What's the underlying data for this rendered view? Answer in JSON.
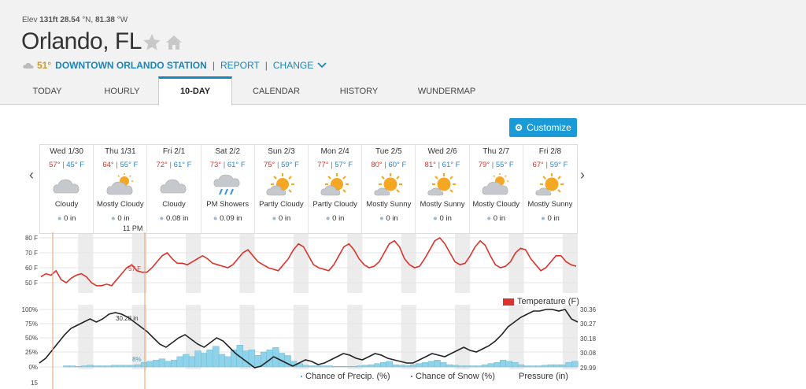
{
  "header": {
    "elev_label": "Elev",
    "elev_value": "131ft",
    "lat": "28.54",
    "lat_dir": "°N,",
    "lon": "81.38",
    "lon_dir": "°W",
    "city": "Orlando, FL",
    "current_temp": "51°",
    "station": "DOWNTOWN ORLANDO STATION",
    "report": "REPORT",
    "change": "CHANGE"
  },
  "tabs": [
    {
      "label": "TODAY"
    },
    {
      "label": "HOURLY"
    },
    {
      "label": "10-DAY"
    },
    {
      "label": "CALENDAR"
    },
    {
      "label": "HISTORY"
    },
    {
      "label": "WUNDERMAP"
    }
  ],
  "active_tab": "10-DAY",
  "customize_label": "Customize",
  "days": [
    {
      "name": "Wed 1/30",
      "hi": "57°",
      "lo": "45° F",
      "icon": "cloudy",
      "cond": "Cloudy",
      "precip": "0 in"
    },
    {
      "name": "Thu 1/31",
      "hi": "64°",
      "lo": "55° F",
      "icon": "mostly-cloudy",
      "cond": "Mostly Cloudy",
      "precip": "0 in"
    },
    {
      "name": "Fri 2/1",
      "hi": "72°",
      "lo": "61° F",
      "icon": "cloudy",
      "cond": "Cloudy",
      "precip": "0.08 in"
    },
    {
      "name": "Sat 2/2",
      "hi": "73°",
      "lo": "61° F",
      "icon": "showers",
      "cond": "PM Showers",
      "precip": "0.09 in"
    },
    {
      "name": "Sun 2/3",
      "hi": "75°",
      "lo": "59° F",
      "icon": "partly-cloudy",
      "cond": "Partly Cloudy",
      "precip": "0 in"
    },
    {
      "name": "Mon 2/4",
      "hi": "77°",
      "lo": "57° F",
      "icon": "partly-cloudy",
      "cond": "Partly Cloudy",
      "precip": "0 in"
    },
    {
      "name": "Tue 2/5",
      "hi": "80°",
      "lo": "60° F",
      "icon": "mostly-sunny",
      "cond": "Mostly Sunny",
      "precip": "0 in"
    },
    {
      "name": "Wed 2/6",
      "hi": "81°",
      "lo": "61° F",
      "icon": "mostly-sunny",
      "cond": "Mostly Sunny",
      "precip": "0 in"
    },
    {
      "name": "Thu 2/7",
      "hi": "79°",
      "lo": "55° F",
      "icon": "mostly-cloudy",
      "cond": "Mostly Cloudy",
      "precip": "0 in"
    },
    {
      "name": "Fri 2/8",
      "hi": "67°",
      "lo": "59° F",
      "icon": "mostly-sunny",
      "cond": "Mostly Sunny",
      "precip": "0 in"
    }
  ],
  "marker_time": "11 PM",
  "temp_chart": {
    "y_ticks": [
      "80 F",
      "70 F",
      "60 F",
      "50 F"
    ],
    "current_label": "57 F"
  },
  "precip_chart": {
    "y_left_ticks": [
      "100%",
      "75%",
      "50%",
      "25%",
      "0%",
      "15"
    ],
    "y_right_ticks": [
      "30.36",
      "30.27",
      "30.18",
      "30.08",
      "29.99"
    ],
    "pressure_label": "30.28 in",
    "precip_label": "8%"
  },
  "legends": {
    "temperature": "Temperature (F)",
    "precip": "Chance of Precip. (%)",
    "snow": "Chance of Snow (%)",
    "pressure": "Pressure (in)"
  },
  "colors": {
    "accent": "#1a86b7",
    "temp_line": "#d9342b",
    "precip_fill": "#8fd3ea",
    "pressure_line": "#222222",
    "high_temp": "#d9342b",
    "low_temp": "#2e86c1"
  }
}
